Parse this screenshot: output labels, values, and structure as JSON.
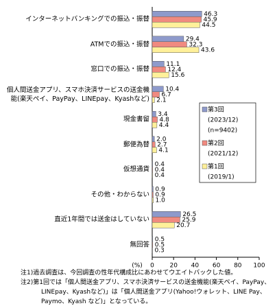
{
  "chart_data": {
    "type": "bar",
    "orientation": "horizontal",
    "categories": [
      "インターネットバンキングでの振込・振替",
      "ATMでの振込・振替",
      "窓口での振込・振替",
      "個人間送金アプリ、スマホ決済サービスの送金機能(楽天ペイ、PayPay、LINEpay、Kyashなど)",
      "現金書留",
      "郵便為替",
      "仮想通貨",
      "その他・わからない",
      "直近1年間では送金はしていない",
      "無回答"
    ],
    "series": [
      {
        "name": "第3回",
        "period": "(2023/12)",
        "sample": "(n=9402)",
        "color": "#8e9acb",
        "values": [
          46.3,
          29.4,
          11.1,
          10.4,
          3.4,
          2.0,
          0.4,
          0.9,
          26.5,
          0.5
        ],
        "value_labels": [
          "46.3",
          "29.4",
          "11.1",
          "10.4",
          "3.4",
          "2.0",
          "0.4",
          "0.9",
          "26.5",
          "0.5"
        ]
      },
      {
        "name": "第2回",
        "period": "(2021/12)",
        "color": "#f08a80",
        "values": [
          45.9,
          32.3,
          12.4,
          6.7,
          4.8,
          2.7,
          0.4,
          0.9,
          25.9,
          0.5
        ],
        "value_labels": [
          "45.9",
          "32.3",
          "12.4",
          "6.7",
          "4.8",
          "2.7",
          "0.4",
          "0.9",
          "25.9",
          "0.5"
        ]
      },
      {
        "name": "第1回",
        "period": "(2019/1)",
        "color": "#fff09a",
        "values": [
          44.5,
          43.6,
          15.6,
          2.1,
          4.4,
          4.1,
          0.4,
          1.0,
          20.7,
          0.3
        ],
        "value_labels": [
          "44.5",
          "43.6",
          "15.6",
          "2.1",
          "4.4",
          "4.1",
          "0.4",
          "1.0",
          "20.7",
          "0.3"
        ]
      }
    ],
    "xlabel": "(%)",
    "xlim": [
      0,
      100
    ],
    "xticks": [
      0,
      20,
      40,
      60,
      80,
      100
    ],
    "grid": false,
    "notes": [
      "注1)過去調査は、今回調査の性年代構成比にあわせてウエイトバックした値。",
      "注2)第1回では「個人間送金アプリ、スマホ決済サービスの送金機能(楽天ペイ、PayPay、LINEpay、Kyashなど)」は「個人間送金アプリ(Yahoo!ウォレット、LINE Pay、Paymo、Kyash など)」となっている。"
    ]
  }
}
